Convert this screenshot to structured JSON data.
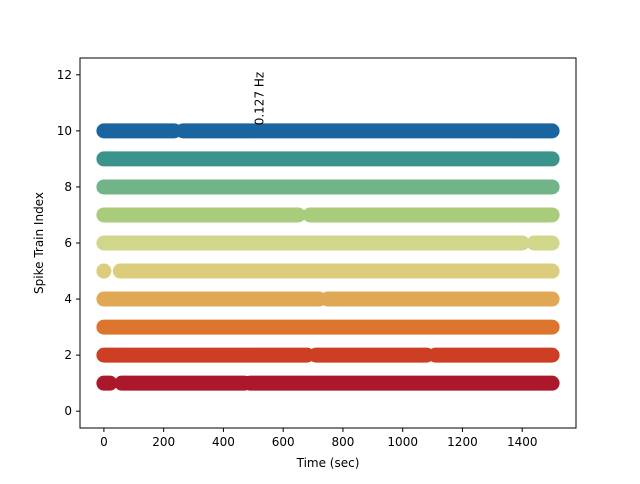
{
  "chart_data": {
    "type": "scatter",
    "title": "",
    "xlabel": "Time (sec)",
    "ylabel": "Spike Train Index",
    "xlim": [
      -80,
      1580
    ],
    "ylim": [
      -0.6,
      12.6
    ],
    "xticks": [
      0,
      200,
      400,
      600,
      800,
      1000,
      1200,
      1400
    ],
    "yticks": [
      0,
      2,
      4,
      6,
      8,
      10,
      12
    ],
    "grid": false,
    "annotation": {
      "text": "0.127 Hz",
      "x": 520,
      "y": 10.2,
      "rotation": 90
    },
    "series": [
      {
        "index": 1,
        "color": "#ab172b",
        "segments": [
          [
            0,
            20
          ],
          [
            60,
            470
          ],
          [
            490,
            1500
          ]
        ]
      },
      {
        "index": 2,
        "color": "#cd3f25",
        "segments": [
          [
            0,
            680
          ],
          [
            710,
            1080
          ],
          [
            1110,
            1500
          ]
        ]
      },
      {
        "index": 3,
        "color": "#dc762e",
        "segments": [
          [
            0,
            1500
          ]
        ]
      },
      {
        "index": 4,
        "color": "#e0a855",
        "segments": [
          [
            0,
            720
          ],
          [
            750,
            1500
          ]
        ]
      },
      {
        "index": 5,
        "color": "#dccd7d",
        "points": [
          0
        ],
        "segments": [
          [
            55,
            1500
          ]
        ]
      },
      {
        "index": 6,
        "color": "#d0d78a",
        "segments": [
          [
            0,
            1400
          ],
          [
            1440,
            1500
          ]
        ]
      },
      {
        "index": 7,
        "color": "#a9cb7c",
        "segments": [
          [
            0,
            650
          ],
          [
            690,
            1490
          ]
        ],
        "points": [
          1500
        ]
      },
      {
        "index": 8,
        "color": "#70b487",
        "segments": [
          [
            0,
            1500
          ]
        ]
      },
      {
        "index": 9,
        "color": "#3a948c",
        "segments": [
          [
            0,
            1500
          ]
        ]
      },
      {
        "index": 10,
        "color": "#1a64a0",
        "segments": [
          [
            0,
            235
          ],
          [
            265,
            1500
          ]
        ]
      }
    ]
  }
}
